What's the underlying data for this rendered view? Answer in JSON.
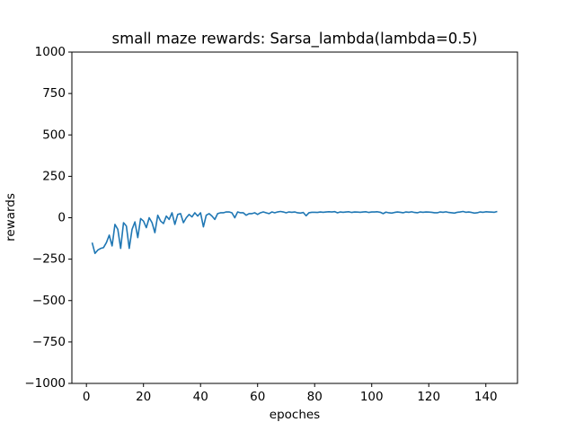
{
  "chart_data": {
    "type": "line",
    "title": "small maze rewards: Sarsa_lambda(lambda=0.5)",
    "x_label": "epoches",
    "y_label": "rewards",
    "x": [
      2,
      3,
      4,
      5,
      6,
      7,
      8,
      9,
      10,
      11,
      12,
      13,
      14,
      15,
      16,
      17,
      18,
      19,
      20,
      21,
      22,
      23,
      24,
      25,
      26,
      27,
      28,
      29,
      30,
      31,
      32,
      33,
      34,
      35,
      36,
      37,
      38,
      39,
      40,
      41,
      42,
      43,
      44,
      45,
      46,
      47,
      48,
      49,
      50,
      51,
      52,
      53,
      54,
      55,
      56,
      57,
      58,
      59,
      60,
      61,
      62,
      63,
      64,
      65,
      66,
      67,
      68,
      69,
      70,
      71,
      72,
      73,
      74,
      75,
      76,
      77,
      78,
      79,
      80,
      81,
      82,
      83,
      84,
      85,
      86,
      87,
      88,
      89,
      90,
      91,
      92,
      93,
      94,
      95,
      96,
      97,
      98,
      99,
      100,
      101,
      102,
      103,
      104,
      105,
      106,
      107,
      108,
      109,
      110,
      111,
      112,
      113,
      114,
      115,
      116,
      117,
      118,
      119,
      120,
      121,
      122,
      123,
      124,
      125,
      126,
      127,
      128,
      129,
      130,
      131,
      132,
      133,
      134,
      135,
      136,
      137,
      138,
      139,
      140,
      141,
      142,
      143,
      144
    ],
    "series": [
      {
        "name": "rewards",
        "color": "#1f77b4",
        "values": [
          -150,
          -215,
          -195,
          -185,
          -180,
          -150,
          -105,
          -170,
          -40,
          -70,
          -185,
          -30,
          -50,
          -185,
          -70,
          -25,
          -120,
          -5,
          -20,
          -60,
          0,
          -30,
          -90,
          15,
          -20,
          -35,
          10,
          -10,
          30,
          -40,
          20,
          25,
          -30,
          0,
          20,
          5,
          30,
          10,
          30,
          -55,
          15,
          25,
          10,
          -10,
          25,
          30,
          30,
          35,
          35,
          30,
          0,
          35,
          30,
          30,
          15,
          25,
          25,
          30,
          20,
          30,
          35,
          30,
          25,
          35,
          30,
          35,
          38,
          35,
          30,
          35,
          33,
          35,
          30,
          28,
          32,
          12,
          30,
          33,
          33,
          32,
          35,
          33,
          35,
          36,
          35,
          37,
          30,
          35,
          33,
          35,
          36,
          32,
          35,
          34,
          33,
          35,
          36,
          32,
          35,
          35,
          36,
          33,
          25,
          34,
          30,
          28,
          32,
          35,
          33,
          30,
          35,
          33,
          36,
          32,
          30,
          35,
          33,
          35,
          34,
          33,
          30,
          30,
          35,
          33,
          36,
          32,
          30,
          28,
          33,
          35,
          38,
          33,
          35,
          32,
          28,
          30,
          35,
          33,
          36,
          35,
          34,
          33,
          38
        ]
      }
    ],
    "xlim": [
      -5.1,
      151.1
    ],
    "xticks": [
      0,
      20,
      40,
      60,
      80,
      100,
      120,
      140
    ],
    "ylim": [
      -1000,
      1000
    ],
    "yticks": [
      {
        "value": -1000,
        "label": "−1000"
      },
      {
        "value": -750,
        "label": "−750"
      },
      {
        "value": -500,
        "label": "−500"
      },
      {
        "value": -250,
        "label": "−250"
      },
      0,
      250,
      500,
      750,
      1000
    ]
  }
}
